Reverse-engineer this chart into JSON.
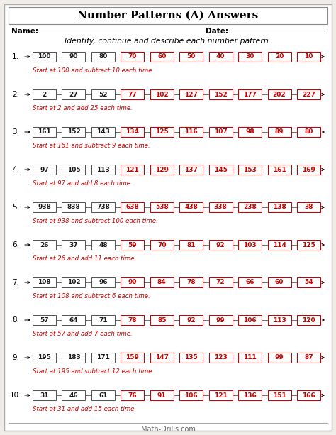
{
  "title": "Number Patterns (A) Answers",
  "subtitle": "Identify, continue and describe each number pattern.",
  "name_label": "Name:",
  "date_label": "Date:",
  "footer": "Math-Drills.com",
  "rows": [
    {
      "numbers": [
        100,
        90,
        80,
        70,
        60,
        50,
        40,
        30,
        20,
        10
      ],
      "given": 3,
      "description": "Start at 100 and subtract 10 each time."
    },
    {
      "numbers": [
        2,
        27,
        52,
        77,
        102,
        127,
        152,
        177,
        202,
        227
      ],
      "given": 3,
      "description": "Start at 2 and add 25 each time."
    },
    {
      "numbers": [
        161,
        152,
        143,
        134,
        125,
        116,
        107,
        98,
        89,
        80
      ],
      "given": 3,
      "description": "Start at 161 and subtract 9 each time."
    },
    {
      "numbers": [
        97,
        105,
        113,
        121,
        129,
        137,
        145,
        153,
        161,
        169
      ],
      "given": 3,
      "description": "Start at 97 and add 8 each time."
    },
    {
      "numbers": [
        938,
        838,
        738,
        638,
        538,
        438,
        338,
        238,
        138,
        38
      ],
      "given": 3,
      "description": "Start at 938 and subtract 100 each time."
    },
    {
      "numbers": [
        26,
        37,
        48,
        59,
        70,
        81,
        92,
        103,
        114,
        125
      ],
      "given": 3,
      "description": "Start at 26 and add 11 each time."
    },
    {
      "numbers": [
        108,
        102,
        96,
        90,
        84,
        78,
        72,
        66,
        60,
        54
      ],
      "given": 3,
      "description": "Start at 108 and subtract 6 each time."
    },
    {
      "numbers": [
        57,
        64,
        71,
        78,
        85,
        92,
        99,
        106,
        113,
        120
      ],
      "given": 3,
      "description": "Start at 57 and add 7 each time."
    },
    {
      "numbers": [
        195,
        183,
        171,
        159,
        147,
        135,
        123,
        111,
        99,
        87
      ],
      "given": 3,
      "description": "Start at 195 and subtract 12 each time."
    },
    {
      "numbers": [
        31,
        46,
        61,
        76,
        91,
        106,
        121,
        136,
        151,
        166
      ],
      "given": 3,
      "description": "Start at 31 and add 15 each time."
    }
  ],
  "given_text_color": "#1a1a1a",
  "given_border_color": "#555555",
  "answer_text_color": "#cc0000",
  "answer_border_color": "#cc0000",
  "description_color": "#cc0000",
  "bg_color": "#f0ede8",
  "title_fontsize": 11,
  "number_fontsize": 6.5,
  "desc_fontsize": 6.2,
  "label_fontsize": 7.5,
  "subtitle_fontsize": 7.8
}
